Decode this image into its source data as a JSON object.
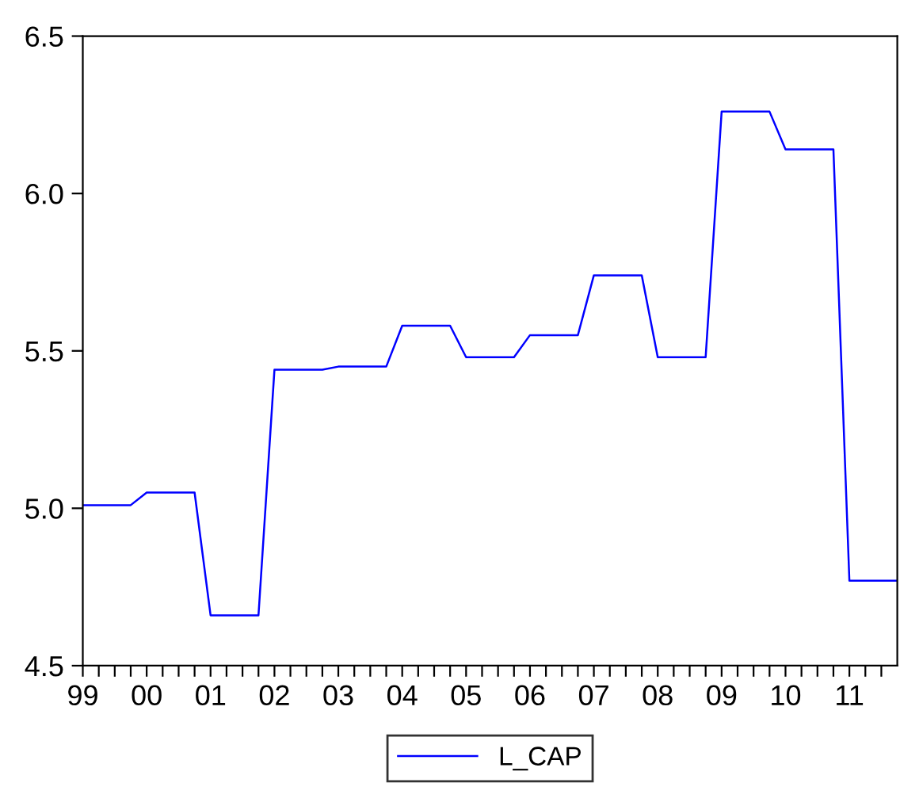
{
  "chart_data": {
    "type": "line",
    "x": [
      1999,
      1999.25,
      1999.5,
      1999.75,
      2000,
      2000.25,
      2000.5,
      2000.75,
      2001,
      2001.25,
      2001.5,
      2001.75,
      2002,
      2002.25,
      2002.5,
      2002.75,
      2003,
      2003.25,
      2003.5,
      2003.75,
      2004,
      2004.25,
      2004.5,
      2004.75,
      2005,
      2005.25,
      2005.5,
      2005.75,
      2006,
      2006.25,
      2006.5,
      2006.75,
      2007,
      2007.25,
      2007.5,
      2007.75,
      2008,
      2008.25,
      2008.5,
      2008.75,
      2009,
      2009.25,
      2009.5,
      2009.75,
      2010,
      2010.25,
      2010.5,
      2010.75,
      2011,
      2011.25,
      2011.5,
      2011.75
    ],
    "series": [
      {
        "name": "L_CAP",
        "color": "#0000ff",
        "values": [
          5.01,
          5.01,
          5.01,
          5.01,
          5.05,
          5.05,
          5.05,
          5.05,
          4.66,
          4.66,
          4.66,
          4.66,
          5.44,
          5.44,
          5.44,
          5.44,
          5.45,
          5.45,
          5.45,
          5.45,
          5.58,
          5.58,
          5.58,
          5.58,
          5.48,
          5.48,
          5.48,
          5.48,
          5.55,
          5.55,
          5.55,
          5.55,
          5.74,
          5.74,
          5.74,
          5.74,
          5.48,
          5.48,
          5.48,
          5.48,
          6.26,
          6.26,
          6.26,
          6.26,
          6.14,
          6.14,
          6.14,
          6.14,
          4.77,
          4.77,
          4.77,
          4.77
        ]
      }
    ],
    "xlim": [
      1999,
      2011.75
    ],
    "xticks": [
      {
        "value": 1999,
        "label": "99"
      },
      {
        "value": 1999.25,
        "label": null
      },
      {
        "value": 1999.5,
        "label": null
      },
      {
        "value": 1999.75,
        "label": null
      },
      {
        "value": 2000,
        "label": "00"
      },
      {
        "value": 2000.25,
        "label": null
      },
      {
        "value": 2000.5,
        "label": null
      },
      {
        "value": 2000.75,
        "label": null
      },
      {
        "value": 2001,
        "label": "01"
      },
      {
        "value": 2001.25,
        "label": null
      },
      {
        "value": 2001.5,
        "label": null
      },
      {
        "value": 2001.75,
        "label": null
      },
      {
        "value": 2002,
        "label": "02"
      },
      {
        "value": 2002.25,
        "label": null
      },
      {
        "value": 2002.5,
        "label": null
      },
      {
        "value": 2002.75,
        "label": null
      },
      {
        "value": 2003,
        "label": "03"
      },
      {
        "value": 2003.25,
        "label": null
      },
      {
        "value": 2003.5,
        "label": null
      },
      {
        "value": 2003.75,
        "label": null
      },
      {
        "value": 2004,
        "label": "04"
      },
      {
        "value": 2004.25,
        "label": null
      },
      {
        "value": 2004.5,
        "label": null
      },
      {
        "value": 2004.75,
        "label": null
      },
      {
        "value": 2005,
        "label": "05"
      },
      {
        "value": 2005.25,
        "label": null
      },
      {
        "value": 2005.5,
        "label": null
      },
      {
        "value": 2005.75,
        "label": null
      },
      {
        "value": 2006,
        "label": "06"
      },
      {
        "value": 2006.25,
        "label": null
      },
      {
        "value": 2006.5,
        "label": null
      },
      {
        "value": 2006.75,
        "label": null
      },
      {
        "value": 2007,
        "label": "07"
      },
      {
        "value": 2007.25,
        "label": null
      },
      {
        "value": 2007.5,
        "label": null
      },
      {
        "value": 2007.75,
        "label": null
      },
      {
        "value": 2008,
        "label": "08"
      },
      {
        "value": 2008.25,
        "label": null
      },
      {
        "value": 2008.5,
        "label": null
      },
      {
        "value": 2008.75,
        "label": null
      },
      {
        "value": 2009,
        "label": "09"
      },
      {
        "value": 2009.25,
        "label": null
      },
      {
        "value": 2009.5,
        "label": null
      },
      {
        "value": 2009.75,
        "label": null
      },
      {
        "value": 2010,
        "label": "10"
      },
      {
        "value": 2010.25,
        "label": null
      },
      {
        "value": 2010.5,
        "label": null
      },
      {
        "value": 2010.75,
        "label": null
      },
      {
        "value": 2011,
        "label": "11"
      },
      {
        "value": 2011.25,
        "label": null
      },
      {
        "value": 2011.5,
        "label": null
      }
    ],
    "ylim": [
      4.5,
      6.5
    ],
    "yticks": [
      {
        "value": 4.5,
        "label": "4.5"
      },
      {
        "value": 5.0,
        "label": "5.0"
      },
      {
        "value": 5.5,
        "label": "5.5"
      },
      {
        "value": 6.0,
        "label": "6.0"
      },
      {
        "value": 6.5,
        "label": "6.5"
      }
    ],
    "legend": "bottom",
    "grid": false
  }
}
